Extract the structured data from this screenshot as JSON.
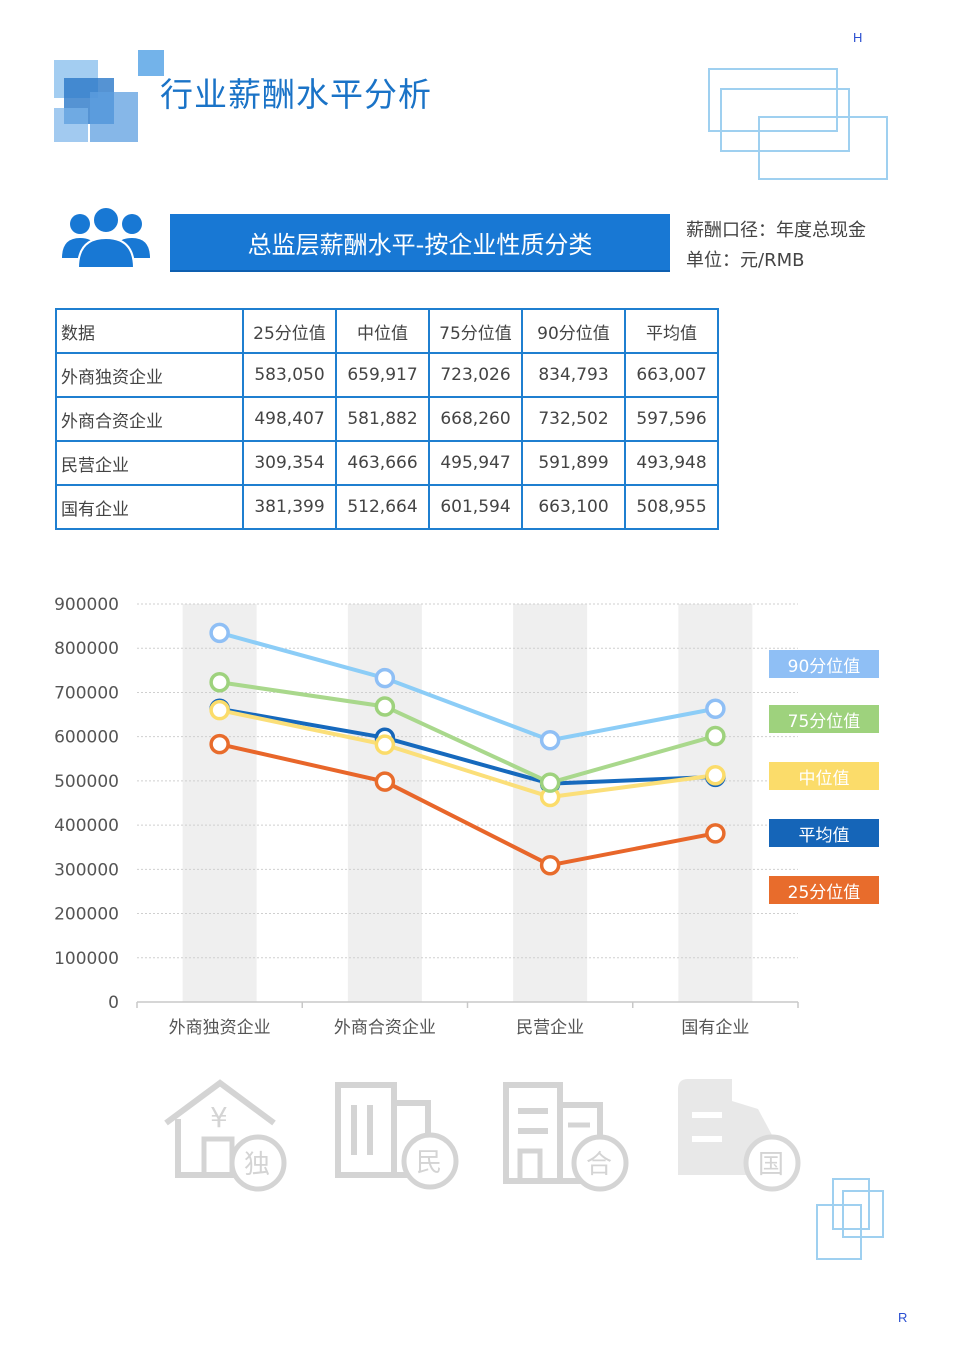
{
  "corner_top": "H",
  "corner_bottom": "R",
  "page_title": "行业薪酬水平分析",
  "banner_title": "总监层薪酬水平-按企业性质分类",
  "salary_basis": "薪酬口径：年度总现金",
  "unit": "单位：元/RMB",
  "table": {
    "headers": [
      "数据",
      "25分位值",
      "中位值",
      "75分位值",
      "90分位值",
      "平均值"
    ],
    "rows": [
      [
        "外商独资企业",
        "583,050",
        "659,917",
        "723,026",
        "834,793",
        "663,007"
      ],
      [
        "外商合资企业",
        "498,407",
        "581,882",
        "668,260",
        "732,502",
        "597,596"
      ],
      [
        "民营企业",
        "309,354",
        "463,666",
        "495,947",
        "591,899",
        "493,948"
      ],
      [
        "国有企业",
        "381,399",
        "512,664",
        "601,594",
        "663,100",
        "508,955"
      ]
    ]
  },
  "chart_data": {
    "type": "line",
    "categories": [
      "外商独资企业",
      "外商合资企业",
      "民营企业",
      "国有企业"
    ],
    "series": [
      {
        "name": "90分位值",
        "color": "#8fbff5",
        "line_color": "#8ccdf7",
        "values": [
          834793,
          732502,
          591899,
          663100
        ]
      },
      {
        "name": "75分位值",
        "color": "#9ed27d",
        "line_color": "#a9d88c",
        "values": [
          723026,
          668260,
          495947,
          601594
        ]
      },
      {
        "name": "中位值",
        "color": "#fbdc6a",
        "line_color": "#fbdf79",
        "values": [
          659917,
          581882,
          463666,
          512664
        ]
      },
      {
        "name": "平均值",
        "color": "#1565b8",
        "line_color": "#1669bd",
        "values": [
          663007,
          597596,
          493948,
          508955
        ]
      },
      {
        "name": "25分位值",
        "color": "#e86c2c",
        "line_color": "#e8662a",
        "values": [
          583050,
          498407,
          309354,
          381399
        ]
      }
    ],
    "ylim": [
      0,
      900000
    ],
    "yticks": [
      "0",
      "100000",
      "200000",
      "300000",
      "400000",
      "500000",
      "600000",
      "700000",
      "800000",
      "900000"
    ],
    "grid": true,
    "legend_position": "right"
  },
  "icons": [
    {
      "name": "house-yen-icon",
      "badge": "独"
    },
    {
      "name": "building-icon",
      "badge": "民"
    },
    {
      "name": "office-icon",
      "badge": "合"
    },
    {
      "name": "tower-icon",
      "badge": "国"
    }
  ]
}
